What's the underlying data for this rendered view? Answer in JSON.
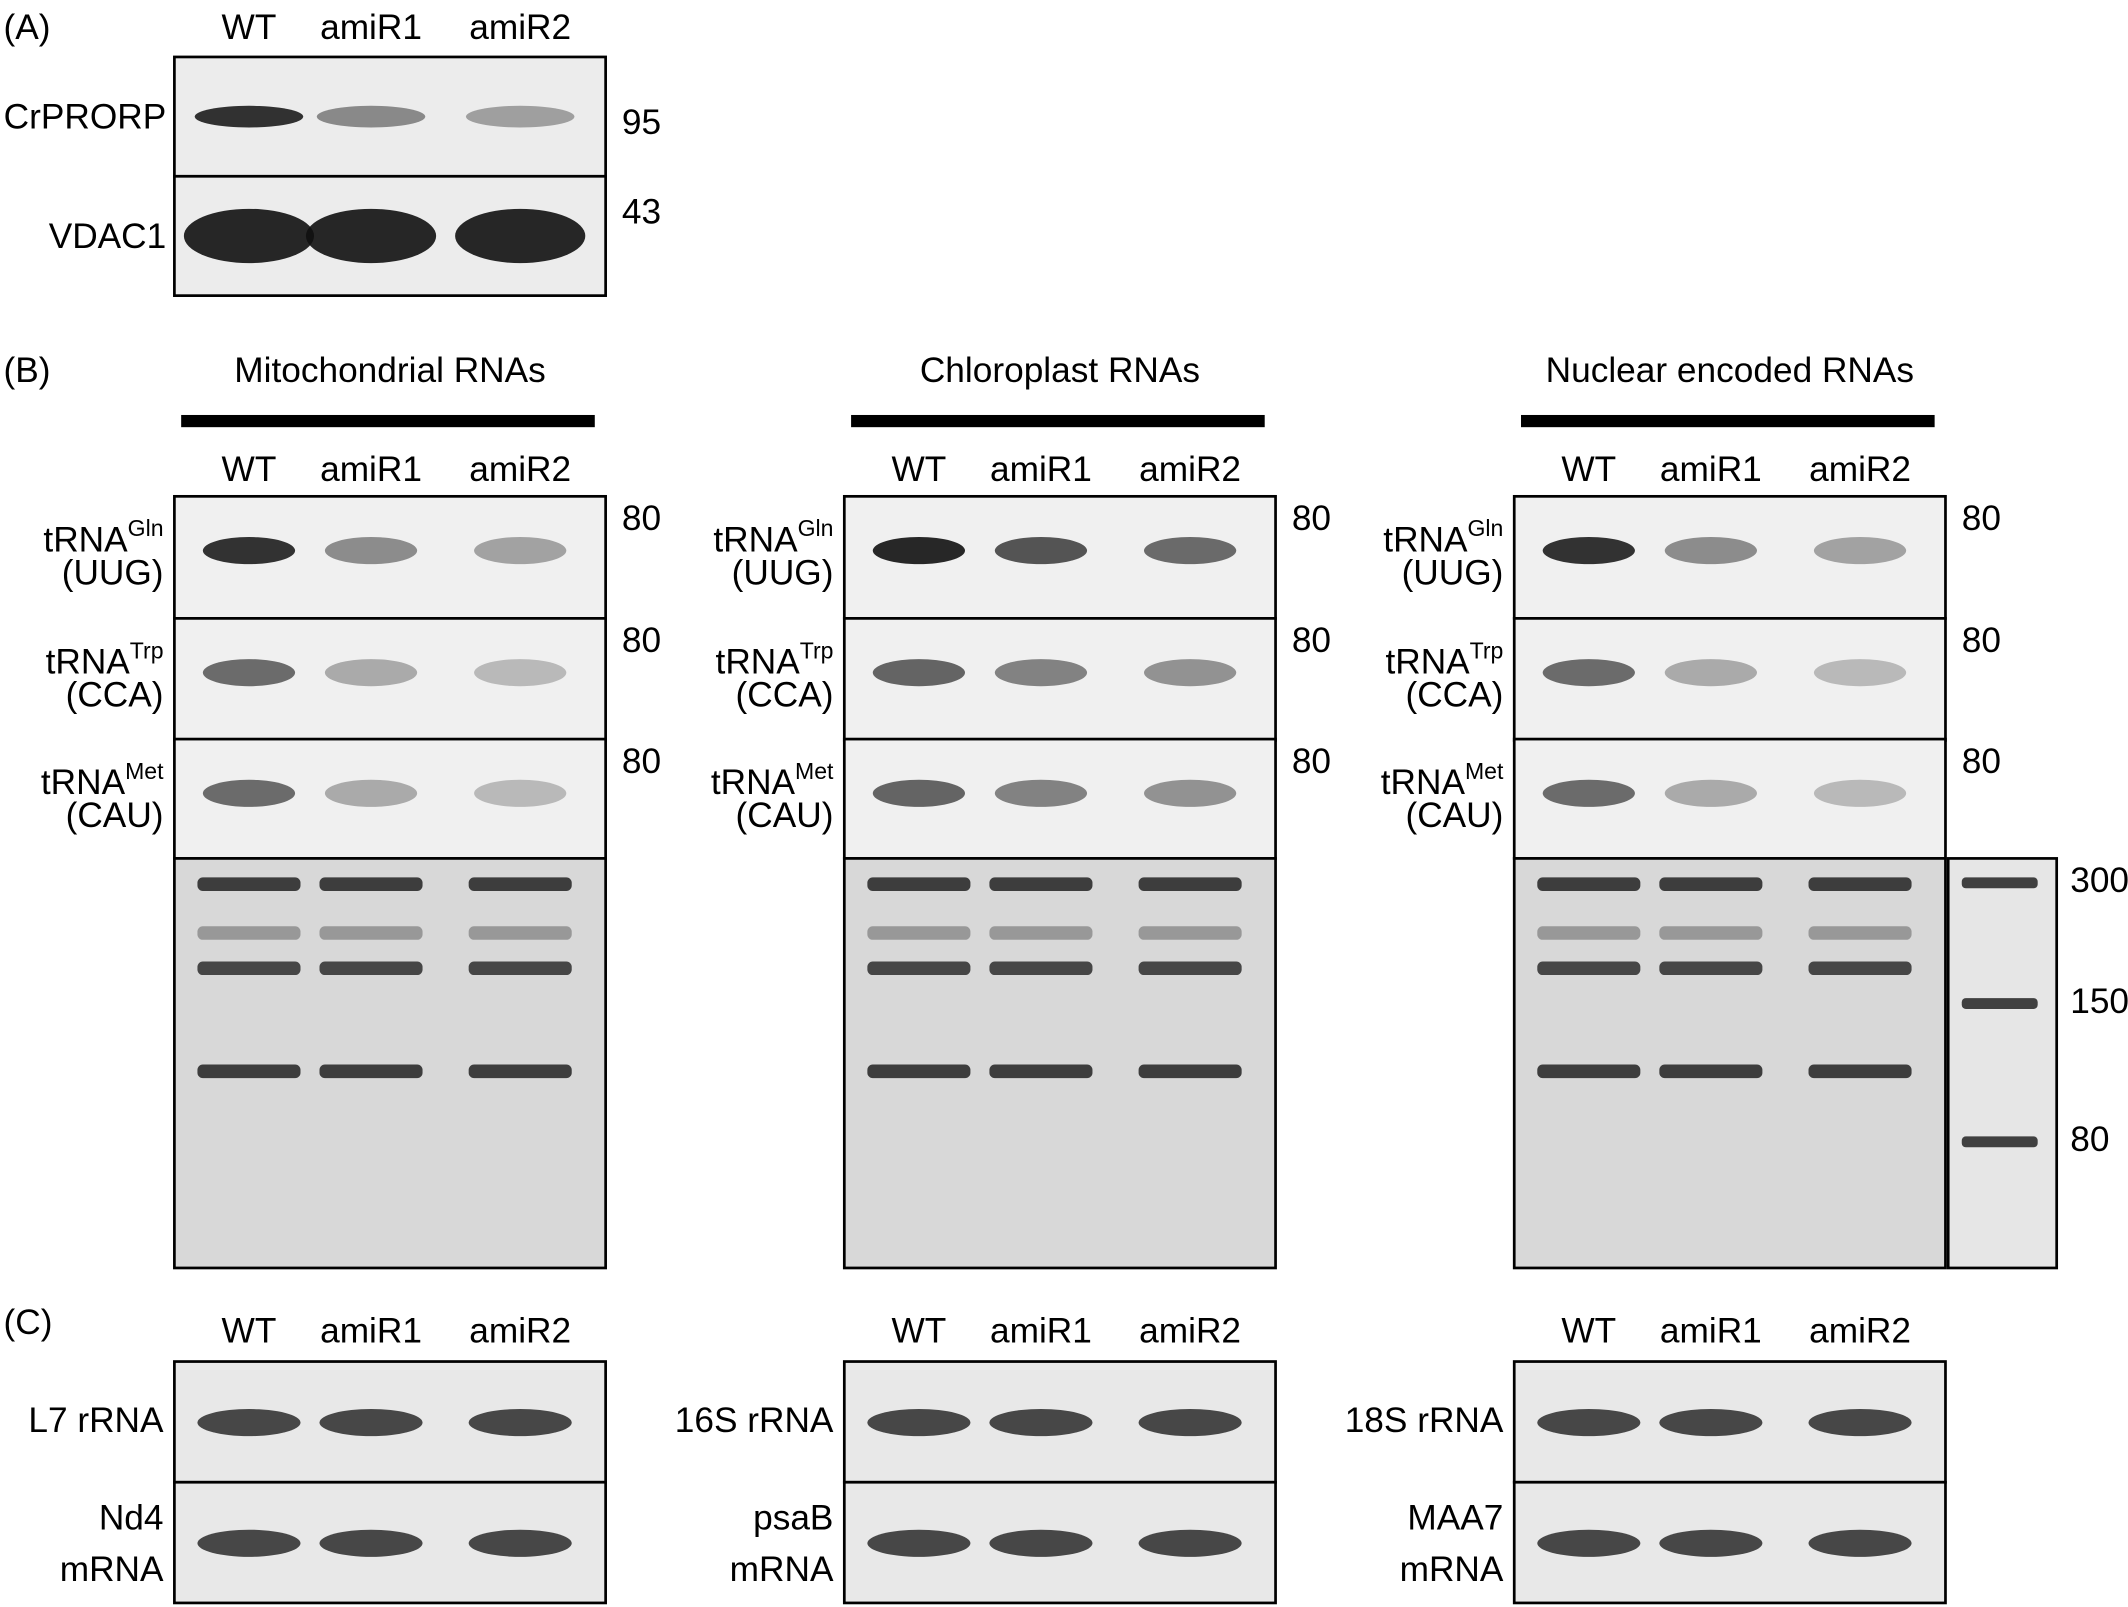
{
  "panel_a": {
    "label": "(A)",
    "lanes": [
      "WT",
      "amiR1",
      "amiR2"
    ],
    "rows": [
      {
        "label": "CrPRORP",
        "marker": 95
      },
      {
        "label": "VDAC1",
        "marker": 43
      }
    ]
  },
  "panel_b": {
    "label": "(B)",
    "groups": [
      {
        "title": "Mitochondrial RNAs",
        "lanes": [
          "WT",
          "amiR1",
          "amiR2"
        ],
        "rows": [
          {
            "name": "tRNA",
            "sup": "Gln",
            "sub": "(UUG)",
            "marker": 80
          },
          {
            "name": "tRNA",
            "sup": "Trp",
            "sub": "(CCA)",
            "marker": 80
          },
          {
            "name": "tRNA",
            "sup": "Met",
            "sub": "(CAU)",
            "marker": 80
          }
        ]
      },
      {
        "title": "Chloroplast RNAs",
        "lanes": [
          "WT",
          "amiR1",
          "amiR2"
        ],
        "rows": [
          {
            "name": "tRNA",
            "sup": "Gln",
            "sub": "(UUG)",
            "marker": 80
          },
          {
            "name": "tRNA",
            "sup": "Trp",
            "sub": "(CCA)",
            "marker": 80
          },
          {
            "name": "tRNA",
            "sup": "Met",
            "sub": "(CAU)",
            "marker": 80
          }
        ]
      },
      {
        "title": "Nuclear encoded RNAs",
        "lanes": [
          "WT",
          "amiR1",
          "amiR2"
        ],
        "rows": [
          {
            "name": "tRNA",
            "sup": "Gln",
            "sub": "(UUG)",
            "marker": 80
          },
          {
            "name": "tRNA",
            "sup": "Trp",
            "sub": "(CCA)",
            "marker": 80
          },
          {
            "name": "tRNA",
            "sup": "Met",
            "sub": "(CAU)",
            "marker": 80
          }
        ]
      }
    ],
    "ladder": [
      300,
      150,
      80
    ]
  },
  "panel_c": {
    "label": "(C)",
    "groups": [
      {
        "lanes": [
          "WT",
          "amiR1",
          "amiR2"
        ],
        "rows": [
          {
            "lines": [
              "L7 rRNA"
            ]
          },
          {
            "lines": [
              "Nd4",
              "mRNA"
            ]
          }
        ]
      },
      {
        "lanes": [
          "WT",
          "amiR1",
          "amiR2"
        ],
        "rows": [
          {
            "lines": [
              "16S rRNA"
            ]
          },
          {
            "lines": [
              "psaB",
              "mRNA"
            ]
          }
        ]
      },
      {
        "lanes": [
          "WT",
          "amiR1",
          "amiR2"
        ],
        "rows": [
          {
            "lines": [
              "18S rRNA"
            ]
          },
          {
            "lines": [
              "MAA7",
              "mRNA"
            ]
          }
        ]
      }
    ]
  }
}
